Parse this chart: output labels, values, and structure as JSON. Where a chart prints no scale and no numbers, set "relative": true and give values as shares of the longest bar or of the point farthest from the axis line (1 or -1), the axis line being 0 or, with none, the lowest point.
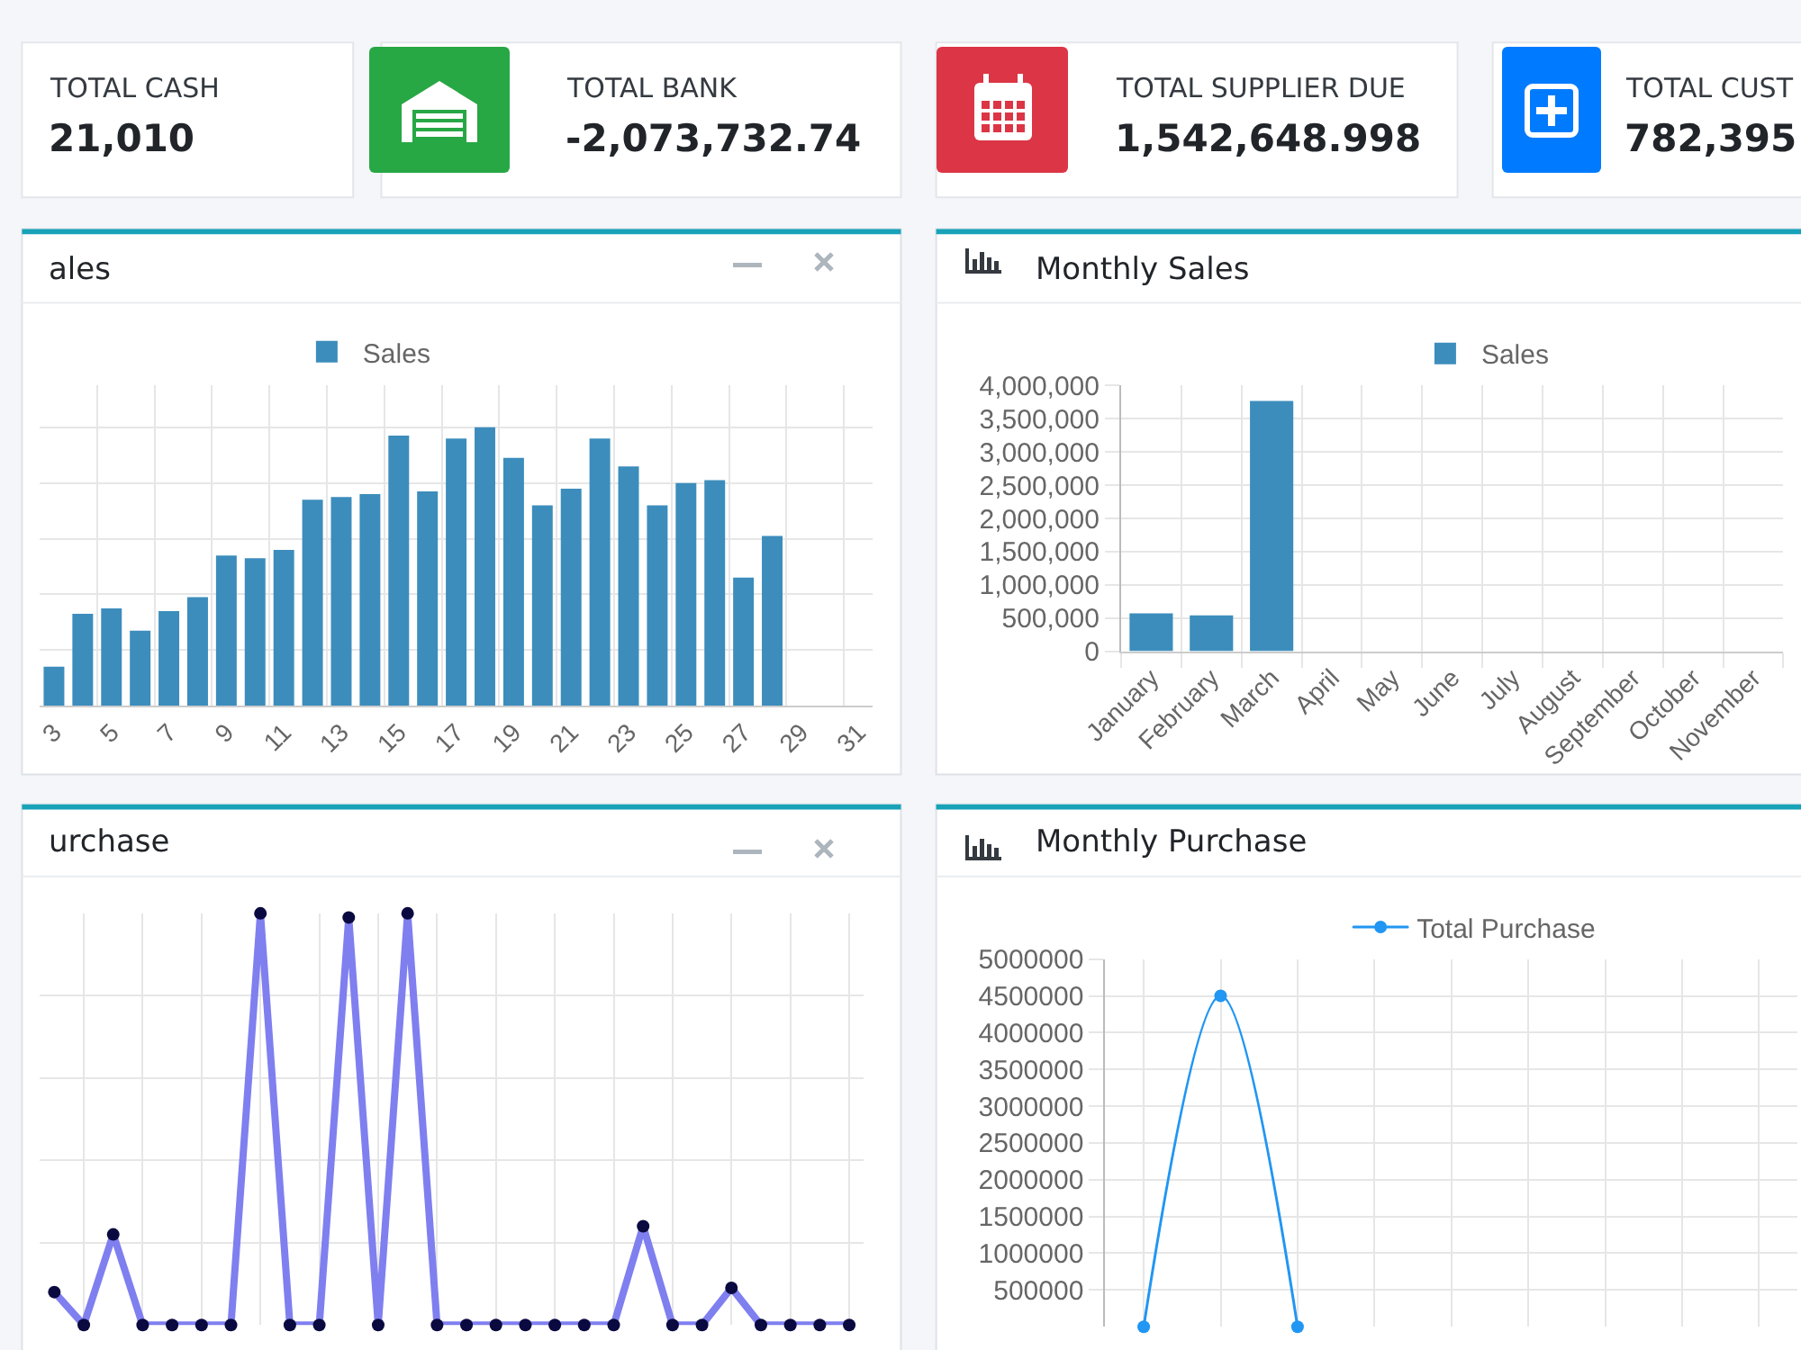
{
  "chart_data": [
    {
      "type": "other",
      "annotations": [
        "TOTAL CASH",
        "21,010",
        "TOTAL BANK",
        "-2,073,732.74",
        "TOTAL SUPPLIER DUE",
        "1,542,648.998",
        "TOTAL CUST",
        "782,395"
      ]
    },
    {
      "type": "bar",
      "title": "ales",
      "categories": [
        "3",
        null,
        "5",
        null,
        "7",
        null,
        "9",
        null,
        "11",
        null,
        "13",
        null,
        "15",
        null,
        "17",
        null,
        "19",
        null,
        "21",
        null,
        "23",
        null,
        "25",
        null,
        "27",
        null,
        "29",
        null,
        "31"
      ],
      "series": [
        {
          "name": "Sales",
          "color": "#3c8dbc",
          "values": [
            0.14,
            0.33,
            0.35,
            0.27,
            0.34,
            0.39,
            0.54,
            0.53,
            0.56,
            0.74,
            0.75,
            0.76,
            0.97,
            0.77,
            0.96,
            1,
            0.89,
            0.72,
            0.78,
            0.96,
            0.86,
            0.72,
            0.8,
            0.81,
            0.46,
            0.61,
            null,
            null,
            null
          ]
        }
      ],
      "relative": true,
      "grid": true,
      "legend": "top"
    },
    {
      "type": "bar",
      "title": "Monthly Sales",
      "categories": [
        "January",
        "February",
        "March",
        "April",
        "May",
        "June",
        "July",
        "August",
        "September",
        "October",
        "November"
      ],
      "series": [
        {
          "name": "Sales",
          "color": "#3c8dbc",
          "values": [
            570000,
            540000,
            3770000,
            null,
            null,
            null,
            null,
            null,
            null,
            null,
            null
          ]
        }
      ],
      "ylim": [
        0,
        4000000
      ],
      "yticks": [
        0,
        {
          "value": 500000,
          "label": "500,000"
        },
        {
          "value": 1000000,
          "label": "1,000,000"
        },
        {
          "value": 1500000,
          "label": "1,500,000"
        },
        {
          "value": 2000000,
          "label": "2,000,000"
        },
        {
          "value": 2500000,
          "label": "2,500,000"
        },
        {
          "value": 3000000,
          "label": "3,000,000"
        },
        {
          "value": 3500000,
          "label": "3,500,000"
        },
        {
          "value": 4000000,
          "label": "4,000,000"
        }
      ],
      "grid": true,
      "legend": "top"
    },
    {
      "type": "line",
      "title": "urchase",
      "categories": [
        null,
        null,
        null,
        null,
        null,
        null,
        null,
        null,
        null,
        null,
        null,
        null,
        null,
        null,
        null,
        null,
        null,
        null,
        null,
        null,
        null,
        null,
        null,
        null,
        null,
        null,
        null,
        null
      ],
      "series": [
        {
          "color": "#7f7ff0",
          "colors": [
            "#0a0a40",
            "#0a0a40",
            "#0a0a40",
            "#0a0a40",
            "#0a0a40",
            "#0a0a40",
            "#0a0a40",
            "#0a0a40",
            "#0a0a40",
            "#0a0a40",
            "#0a0a40",
            "#0a0a40",
            "#0a0a40",
            "#0a0a40",
            "#0a0a40",
            "#0a0a40",
            "#0a0a40",
            "#0a0a40",
            "#0a0a40",
            "#0a0a40",
            "#0a0a40",
            "#0a0a40",
            "#0a0a40",
            "#0a0a40",
            "#0a0a40",
            "#0a0a40",
            "#0a0a40",
            "#0a0a40"
          ],
          "values": [
            0.08,
            0,
            0.22,
            0,
            0,
            0,
            0,
            1,
            0,
            0,
            0.99,
            0,
            1,
            0,
            0,
            0,
            0,
            0,
            0,
            0,
            0.24,
            0,
            0,
            0.09,
            0,
            0,
            0,
            0
          ]
        }
      ],
      "relative": true,
      "grid": true,
      "tick_labels": false,
      "marker": "circle",
      "line_style": "solid"
    },
    {
      "type": "line",
      "title": "Monthly Purchase",
      "categories": [
        null,
        null,
        null,
        null,
        null,
        null,
        null,
        null,
        null
      ],
      "series": [
        {
          "name": "Total Purchase",
          "color": "#2196f3",
          "values": [
            0,
            4500000,
            0,
            null,
            null,
            null,
            null,
            null,
            null
          ]
        }
      ],
      "ylim": [
        0,
        5000000
      ],
      "yticks": [
        500000,
        1000000,
        1500000,
        2000000,
        2500000,
        3000000,
        3500000,
        4000000,
        4500000,
        5000000
      ],
      "grid": true,
      "legend": "top",
      "tick_labels": "y",
      "marker": "circle",
      "line_style": "solid"
    }
  ]
}
